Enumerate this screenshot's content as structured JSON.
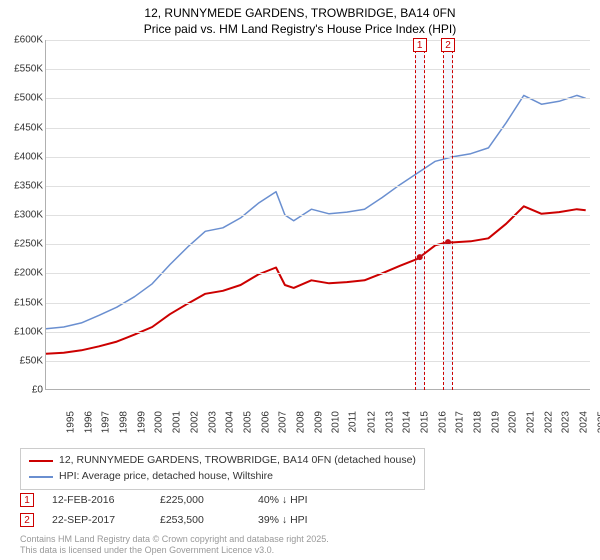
{
  "title_line1": "12, RUNNYMEDE GARDENS, TROWBRIDGE, BA14 0FN",
  "title_line2": "Price paid vs. HM Land Registry's House Price Index (HPI)",
  "chart": {
    "type": "line",
    "xlim": [
      1995,
      2025.8
    ],
    "ylim": [
      0,
      600000
    ],
    "ytick_step": 50000,
    "yticks": [
      "£0",
      "£50K",
      "£100K",
      "£150K",
      "£200K",
      "£250K",
      "£300K",
      "£350K",
      "£400K",
      "£450K",
      "£500K",
      "£550K",
      "£600K"
    ],
    "xticks": [
      "1995",
      "1996",
      "1997",
      "1998",
      "1999",
      "2000",
      "2001",
      "2002",
      "2003",
      "2004",
      "2005",
      "2006",
      "2007",
      "2008",
      "2009",
      "2010",
      "2011",
      "2012",
      "2013",
      "2014",
      "2015",
      "2016",
      "2017",
      "2018",
      "2019",
      "2020",
      "2021",
      "2022",
      "2023",
      "2024",
      "2025"
    ],
    "grid_color": "#e0e0e0",
    "background_color": "#ffffff",
    "series": [
      {
        "name": "hpi",
        "label": "HPI: Average price, detached house, Wiltshire",
        "color": "#6a8fd0",
        "width": 1.5,
        "data": [
          [
            1995,
            105000
          ],
          [
            1996,
            108000
          ],
          [
            1997,
            115000
          ],
          [
            1998,
            128000
          ],
          [
            1999,
            142000
          ],
          [
            2000,
            160000
          ],
          [
            2001,
            182000
          ],
          [
            2002,
            215000
          ],
          [
            2003,
            245000
          ],
          [
            2004,
            272000
          ],
          [
            2005,
            278000
          ],
          [
            2006,
            295000
          ],
          [
            2007,
            320000
          ],
          [
            2008,
            340000
          ],
          [
            2008.5,
            300000
          ],
          [
            2009,
            290000
          ],
          [
            2010,
            310000
          ],
          [
            2011,
            302000
          ],
          [
            2012,
            305000
          ],
          [
            2013,
            310000
          ],
          [
            2014,
            330000
          ],
          [
            2015,
            352000
          ],
          [
            2016,
            372000
          ],
          [
            2017,
            392000
          ],
          [
            2018,
            400000
          ],
          [
            2019,
            405000
          ],
          [
            2020,
            415000
          ],
          [
            2021,
            458000
          ],
          [
            2022,
            505000
          ],
          [
            2023,
            490000
          ],
          [
            2024,
            495000
          ],
          [
            2025,
            505000
          ],
          [
            2025.5,
            500000
          ]
        ]
      },
      {
        "name": "property",
        "label": "12, RUNNYMEDE GARDENS, TROWBRIDGE, BA14 0FN (detached house)",
        "color": "#cc0000",
        "width": 2,
        "data": [
          [
            1995,
            62000
          ],
          [
            1996,
            64000
          ],
          [
            1997,
            68000
          ],
          [
            1998,
            75000
          ],
          [
            1999,
            83000
          ],
          [
            2000,
            95000
          ],
          [
            2001,
            108000
          ],
          [
            2002,
            130000
          ],
          [
            2003,
            148000
          ],
          [
            2004,
            165000
          ],
          [
            2005,
            170000
          ],
          [
            2006,
            180000
          ],
          [
            2007,
            198000
          ],
          [
            2008,
            210000
          ],
          [
            2008.5,
            180000
          ],
          [
            2009,
            175000
          ],
          [
            2010,
            188000
          ],
          [
            2011,
            183000
          ],
          [
            2012,
            185000
          ],
          [
            2013,
            188000
          ],
          [
            2014,
            200000
          ],
          [
            2015,
            213000
          ],
          [
            2016,
            225000
          ],
          [
            2017,
            248000
          ],
          [
            2017.7,
            253500
          ],
          [
            2018,
            253000
          ],
          [
            2019,
            255000
          ],
          [
            2020,
            260000
          ],
          [
            2021,
            285000
          ],
          [
            2022,
            315000
          ],
          [
            2023,
            302000
          ],
          [
            2024,
            305000
          ],
          [
            2025,
            310000
          ],
          [
            2025.5,
            308000
          ]
        ]
      }
    ],
    "markers": [
      {
        "id": "1",
        "x": 2016.12
      },
      {
        "id": "2",
        "x": 2017.72
      }
    ]
  },
  "legend": {
    "items": [
      {
        "color": "#cc0000",
        "label": "12, RUNNYMEDE GARDENS, TROWBRIDGE, BA14 0FN (detached house)"
      },
      {
        "color": "#6a8fd0",
        "label": "HPI: Average price, detached house, Wiltshire"
      }
    ]
  },
  "transactions": [
    {
      "id": "1",
      "date": "12-FEB-2016",
      "price": "£225,000",
      "delta": "40% ↓ HPI"
    },
    {
      "id": "2",
      "date": "22-SEP-2017",
      "price": "£253,500",
      "delta": "39% ↓ HPI"
    }
  ],
  "footer": {
    "line1": "Contains HM Land Registry data © Crown copyright and database right 2025.",
    "line2": "This data is licensed under the Open Government Licence v3.0."
  }
}
